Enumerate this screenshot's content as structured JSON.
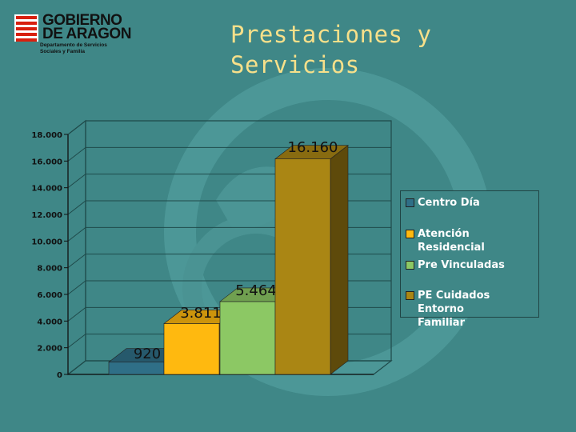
{
  "logo": {
    "line1": "GOBIERNO",
    "line2": "DE ARAGON",
    "sub1": "Departamento de Servicios",
    "sub2": "Sociales y Familia"
  },
  "title": {
    "line1": "Prestaciones y",
    "line2": "Servicios"
  },
  "colors": {
    "background": "#3f8787",
    "title": "#f7e08a",
    "grid": "#1f4a4a"
  },
  "chart_data": {
    "type": "bar",
    "title": "Prestaciones y Servicios",
    "xlabel": "",
    "ylabel": "",
    "ylim": [
      0,
      18000
    ],
    "yticks": [
      0,
      2000,
      4000,
      6000,
      8000,
      10000,
      12000,
      14000,
      16000,
      18000
    ],
    "ytick_labels": [
      "0",
      "2.000",
      "4.000",
      "6.000",
      "8.000",
      "10.000",
      "12.000",
      "14.000",
      "16.000",
      "18.000"
    ],
    "grid": true,
    "legend_position": "right",
    "series": [
      {
        "name": "Centro Día",
        "value": 920,
        "label": "920",
        "color": "#2f6f87"
      },
      {
        "name": "Atención Residencial",
        "value": 3811,
        "label": "3.811",
        "color": "#ffb90f"
      },
      {
        "name": "Pre Vinculadas",
        "value": 5464,
        "label": "5.464",
        "color": "#8cc864"
      },
      {
        "name": "PE Cuidados Entorno Familiar",
        "value": 16160,
        "label": "16.160",
        "color": "#aa8614"
      }
    ]
  },
  "legend": {
    "items": [
      {
        "line1": "Centro Día",
        "line2": ""
      },
      {
        "line1": "Atención Residencial",
        "line2": ""
      },
      {
        "line1": "Pre Vinculadas",
        "line2": ""
      },
      {
        "line1": "PE Cuidados Entorno",
        "line2": "Familiar"
      }
    ]
  }
}
